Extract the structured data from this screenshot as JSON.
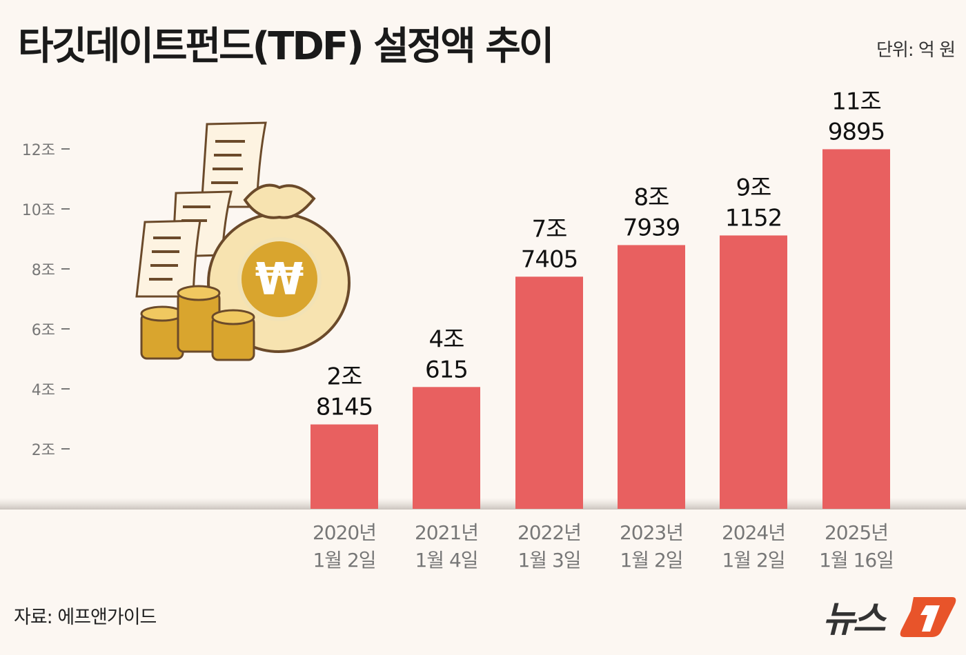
{
  "title": "타깃데이트펀드(TDF) 설정액 추이",
  "unit": "단위: 억 원",
  "source": "자료: 에프앤가이드",
  "logo": "뉴스1",
  "colors": {
    "background": "#fcf7f2",
    "bar": "#e86060",
    "logo_accent": "#e8542a"
  },
  "chart_data": {
    "type": "bar",
    "categories": [
      [
        "2020년",
        "1월 2일"
      ],
      [
        "2021년",
        "1월 4일"
      ],
      [
        "2022년",
        "1월 3일"
      ],
      [
        "2023년",
        "1월 2일"
      ],
      [
        "2024년",
        "1월 2일"
      ],
      [
        "2025년",
        "1월 16일"
      ]
    ],
    "values": [
      28145,
      40615,
      77405,
      87939,
      91152,
      119895
    ],
    "data_labels": [
      [
        "2조",
        "8145"
      ],
      [
        "4조",
        "615"
      ],
      [
        "7조",
        "7405"
      ],
      [
        "8조",
        "7939"
      ],
      [
        "9조",
        "1152"
      ],
      [
        "11조",
        "9895"
      ]
    ],
    "y_ticks": [
      {
        "value": 20000,
        "label": "2조"
      },
      {
        "value": 40000,
        "label": "4조"
      },
      {
        "value": 60000,
        "label": "6조"
      },
      {
        "value": 80000,
        "label": "8조"
      },
      {
        "value": 100000,
        "label": "10조"
      },
      {
        "value": 120000,
        "label": "12조"
      }
    ],
    "ylim": [
      0,
      120000
    ],
    "grid": false
  }
}
